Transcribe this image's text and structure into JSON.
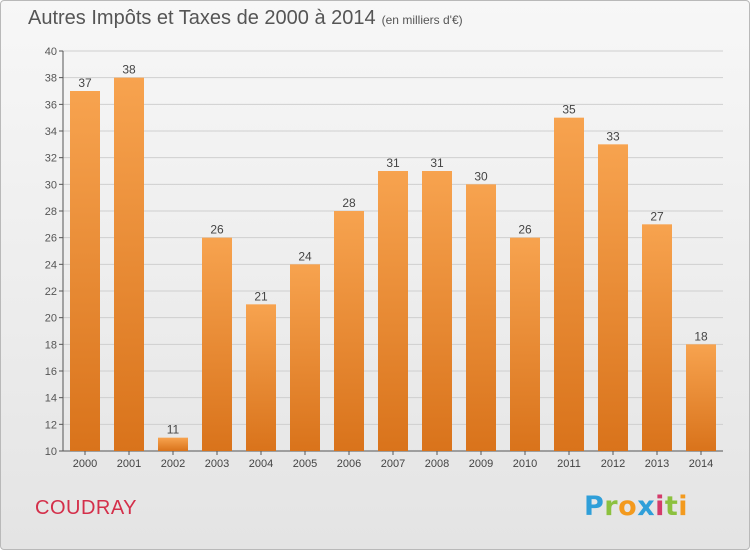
{
  "header": {
    "title": "Autres Impôts et Taxes de 2000 à 2014",
    "unit": "(en milliers d'€)"
  },
  "footer": {
    "place": "COUDRAY",
    "logo_text": "Proxiti",
    "logo_colors": [
      "#2f9fd9",
      "#8cc13f",
      "#f39a1e",
      "#2f9fd9",
      "#d43b6a",
      "#8cc13f",
      "#f39a1e"
    ]
  },
  "colors": {
    "bar_light": "#f7a34f",
    "bar_dark": "#d9731b",
    "grid": "#cfcfcf",
    "title_text": "#555555",
    "place_text": "#d42f4a"
  },
  "chart_data": {
    "type": "bar",
    "categories": [
      "2000",
      "2001",
      "2002",
      "2003",
      "2004",
      "2005",
      "2006",
      "2007",
      "2008",
      "2009",
      "2010",
      "2011",
      "2012",
      "2013",
      "2014"
    ],
    "values": [
      37,
      38,
      11,
      26,
      21,
      24,
      28,
      31,
      31,
      30,
      26,
      35,
      33,
      27,
      18
    ],
    "title": "Autres Impôts et Taxes de 2000 à 2014",
    "ylim": [
      10,
      40
    ],
    "yticks": [
      10,
      12,
      14,
      16,
      18,
      20,
      22,
      24,
      26,
      28,
      30,
      32,
      34,
      36,
      38,
      40
    ],
    "grid": true,
    "legend": "none"
  }
}
